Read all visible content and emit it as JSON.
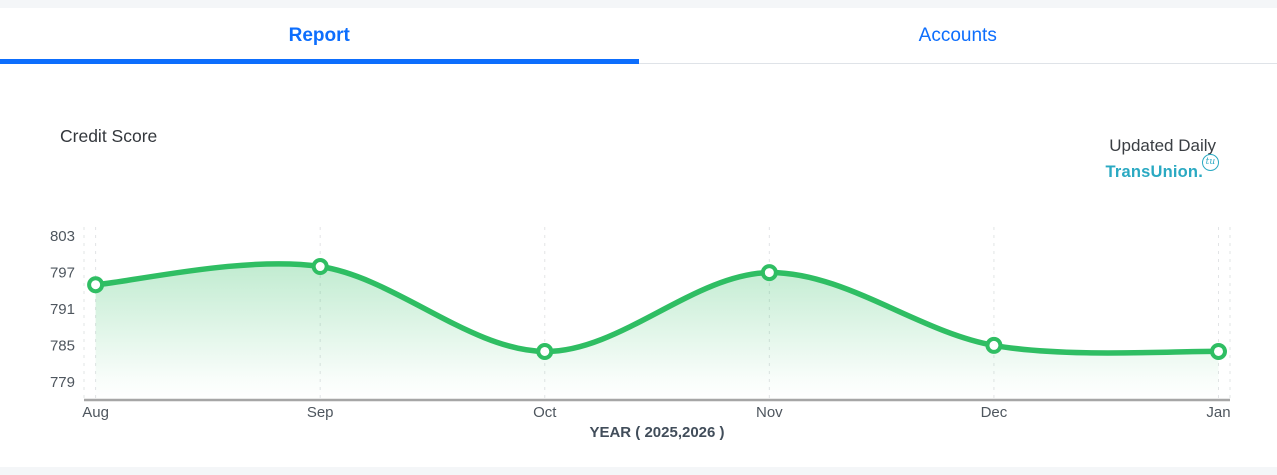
{
  "tabs": [
    {
      "label": "Report",
      "active": true
    },
    {
      "label": "Accounts",
      "active": false
    }
  ],
  "section": {
    "title": "Credit Score",
    "updated_label": "Updated Daily",
    "bureau_name": "TransUnion.",
    "bureau_mark": "tu"
  },
  "colors": {
    "accent_blue": "#0d6efd",
    "teal": "#2aa9c2",
    "line_green": "#2fbe63",
    "grid": "#e2e4e6",
    "axis_line": "#a6a6a6",
    "tick_label": "#4e565e",
    "axis_title": "#414d5a"
  },
  "chart_data": {
    "type": "area",
    "categories": [
      "Aug",
      "Sep",
      "Oct",
      "Nov",
      "Dec",
      "Jan"
    ],
    "series": [
      {
        "name": "Credit Score",
        "values": [
          795,
          798,
          784,
          797,
          785,
          784
        ]
      }
    ],
    "title": "",
    "xlabel": "YEAR ( 2025,2026 )",
    "ylabel": "",
    "yticks": [
      803,
      797,
      791,
      785,
      779
    ],
    "ylim": [
      776,
      806
    ],
    "grid": "vertical-dashed",
    "legend": "none",
    "marker": "circle-white-fill"
  }
}
